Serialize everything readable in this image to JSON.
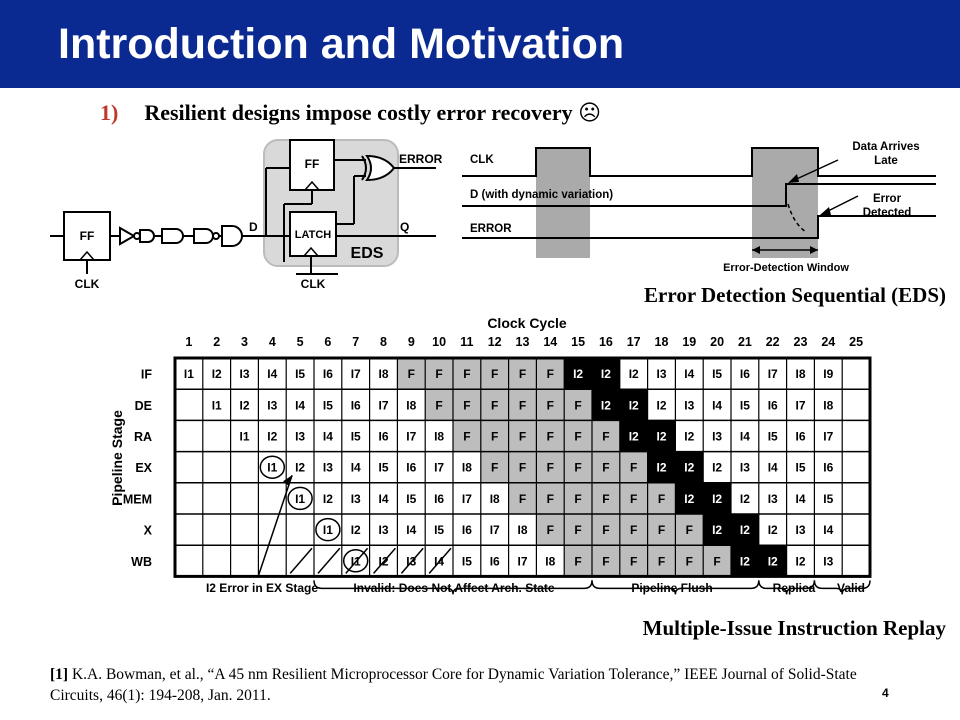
{
  "slide": {
    "title": "Introduction and Motivation",
    "bullet_number": "1)",
    "bullet_text": "Resilient designs impose costly error recovery",
    "bullet_emoticon": "☹",
    "page_number": "4"
  },
  "citation": {
    "ref_tag": "[1]",
    "text": " K.A. Bowman, et al., “A 45 nm Resilient Microprocessor Core for Dynamic Variation Tolerance,” IEEE Journal of Solid-State Circuits, 46(1): 194-208, Jan. 2011."
  },
  "eds_circuit": {
    "ff_left": "FF",
    "clk_left": "CLK",
    "d_label": "D",
    "ff_top": "FF",
    "latch": "LATCH",
    "eds_label": "EDS",
    "error_out": "ERROR",
    "q_out": "Q",
    "clk_right": "CLK"
  },
  "timing": {
    "clk": "CLK",
    "d": "D (with dynamic variation)",
    "error": "ERROR",
    "data_arrives_late_1": "Data Arrives",
    "data_arrives_late_2": "Late",
    "error_detected_1": "Error",
    "error_detected_2": "Detected",
    "window": "Error-Detection Window"
  },
  "eds_caption": "Error Detection Sequential (EDS)",
  "pipeline": {
    "clock_cycle_label": "Clock Cycle",
    "stage_axis_label": "Pipeline Stage",
    "cycles": [
      "1",
      "2",
      "3",
      "4",
      "5",
      "6",
      "7",
      "8",
      "9",
      "10",
      "11",
      "12",
      "13",
      "14",
      "15",
      "16",
      "17",
      "18",
      "19",
      "20",
      "21",
      "22",
      "23",
      "24",
      "25"
    ],
    "stages": [
      "IF",
      "DE",
      "RA",
      "EX",
      "MEM",
      "X",
      "WB"
    ],
    "rows": [
      [
        "I1",
        "I2",
        "I3",
        "I4",
        "I5",
        "I6",
        "I7",
        "I8",
        "F",
        "F",
        "F",
        "F",
        "F",
        "F",
        "I2",
        "I2",
        "I2",
        "I3",
        "I4",
        "I5",
        "I6",
        "I7",
        "I8",
        "I9"
      ],
      [
        "I1",
        "I2",
        "I3",
        "I4",
        "I5",
        "I6",
        "I7",
        "I8",
        "F",
        "F",
        "F",
        "F",
        "F",
        "F",
        "I2",
        "I2",
        "I2",
        "I3",
        "I4",
        "I5",
        "I6",
        "I7",
        "I8"
      ],
      [
        "I1",
        "I2",
        "I3",
        "I4",
        "I5",
        "I6",
        "I7",
        "I8",
        "F",
        "F",
        "F",
        "F",
        "F",
        "F",
        "I2",
        "I2",
        "I2",
        "I3",
        "I4",
        "I5",
        "I6",
        "I7"
      ],
      [
        "I1",
        "I2",
        "I3",
        "I4",
        "I5",
        "I6",
        "I7",
        "I8",
        "F",
        "F",
        "F",
        "F",
        "F",
        "F",
        "I2",
        "I2",
        "I2",
        "I3",
        "I4",
        "I5",
        "I6"
      ],
      [
        "I1",
        "I2",
        "I3",
        "I4",
        "I5",
        "I6",
        "I7",
        "I8",
        "F",
        "F",
        "F",
        "F",
        "F",
        "F",
        "I2",
        "I2",
        "I2",
        "I3",
        "I4",
        "I5"
      ],
      [
        "I1",
        "I2",
        "I3",
        "I4",
        "I5",
        "I6",
        "I7",
        "I8",
        "F",
        "F",
        "F",
        "F",
        "F",
        "F",
        "I2",
        "I2",
        "I2",
        "I3",
        "I4"
      ],
      [
        "I1",
        "I2",
        "I3",
        "I4",
        "I5",
        "I6",
        "I7",
        "I8",
        "F",
        "F",
        "F",
        "F",
        "F",
        "F",
        "I2",
        "I2",
        "I2",
        "I3"
      ]
    ],
    "error_note": "I2 Error in EX Stage",
    "brace_invalid": "Invalid: Does Not Affect Arch. State",
    "brace_flush": "Pipeline Flush",
    "brace_replica": "Replica",
    "brace_valid": "Valid"
  },
  "pipeline_caption": "Multiple-Issue Instruction Replay"
}
